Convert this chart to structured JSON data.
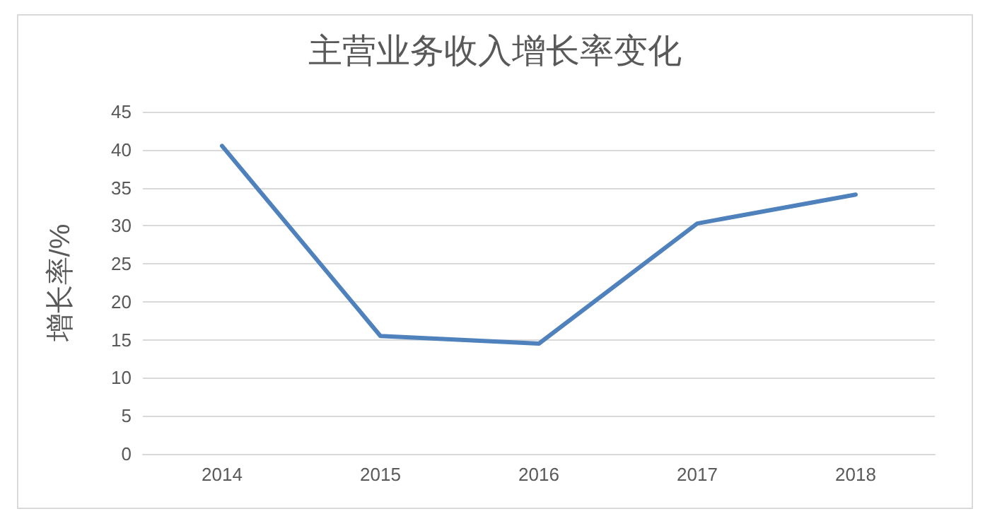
{
  "chart_data": {
    "type": "line",
    "title": "主营业务收入增长率变化",
    "ylabel": "增长率/%",
    "categories": [
      "2014",
      "2015",
      "2016",
      "2017",
      "2018"
    ],
    "series": [
      {
        "color": "#4f81bd",
        "values": [
          40.5,
          15.5,
          14.5,
          30.3,
          34.1
        ]
      }
    ],
    "ylim": [
      0,
      45
    ],
    "yticks": [
      0,
      5,
      10,
      15,
      20,
      25,
      30,
      35,
      40,
      45
    ],
    "grid": "y",
    "marker": "none",
    "line_style": "solid"
  }
}
